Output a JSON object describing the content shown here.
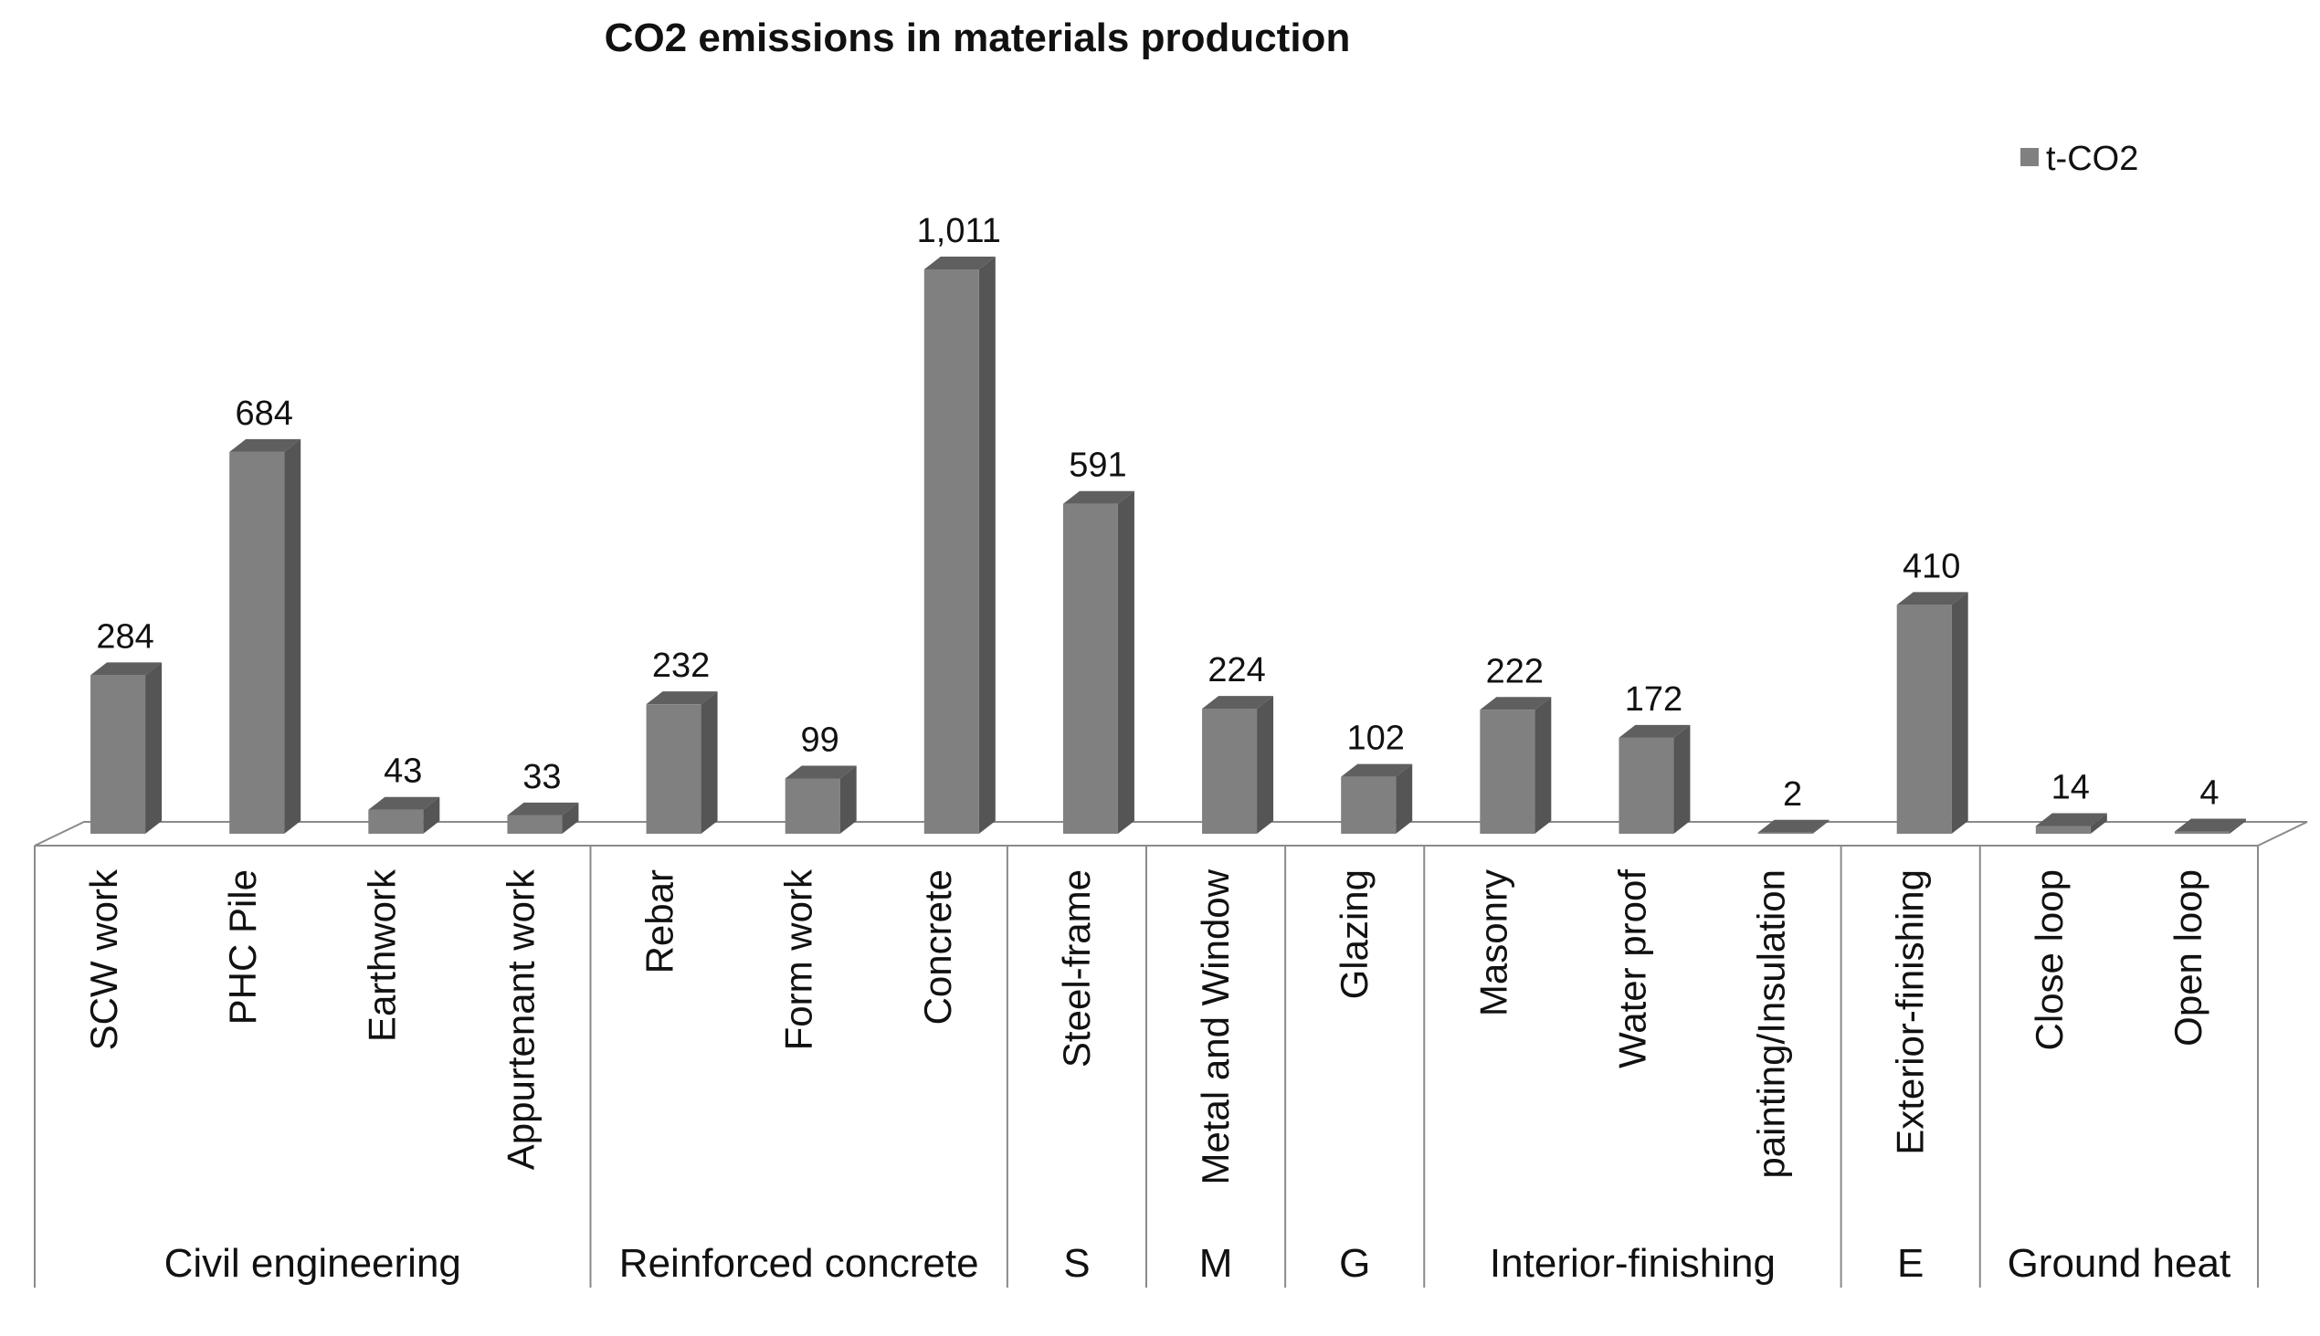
{
  "chart_data": {
    "type": "bar",
    "style": "3d-column",
    "title": "CO2 emissions in materials production",
    "legend": {
      "entries": [
        "t-CO2"
      ],
      "placement": "top-right"
    },
    "series": [
      {
        "name": "t-CO2",
        "values": [
          284,
          684,
          43,
          33,
          232,
          99,
          1011,
          591,
          224,
          102,
          222,
          172,
          2,
          410,
          14,
          4
        ],
        "value_labels": [
          "284",
          "684",
          "43",
          "33",
          "232",
          "99",
          "1,011",
          "591",
          "224",
          "102",
          "222",
          "172",
          "2",
          "410",
          "14",
          "4"
        ]
      }
    ],
    "categories": [
      "SCW work",
      "PHC Pile",
      "Earthwork",
      "Appurtenant work",
      "Rebar",
      "Form work",
      "Concrete",
      "Steel-frame",
      "Metal and Window",
      "Glazing",
      "Masonry",
      "Water proof",
      "painting/Insulation",
      "Exterior-finishing",
      "Close loop",
      "Open loop"
    ],
    "groups": [
      {
        "label": "Civil engineering",
        "count": 4
      },
      {
        "label": "Reinforced concrete",
        "count": 3
      },
      {
        "label": "S",
        "count": 1
      },
      {
        "label": "M",
        "count": 1
      },
      {
        "label": "G",
        "count": 1
      },
      {
        "label": "Interior-finishing",
        "count": 3
      },
      {
        "label": "E",
        "count": 1
      },
      {
        "label": "Ground heat",
        "count": 2
      }
    ],
    "ylim": [
      0,
      1100
    ],
    "grid": false,
    "xlabel": "",
    "ylabel": ""
  },
  "colors": {
    "bar_front": "#808080",
    "bar_side": "#555555",
    "bar_top": "#5f5f5f",
    "floor_fill": "#ffffff",
    "lines": "#8a8a8a"
  }
}
